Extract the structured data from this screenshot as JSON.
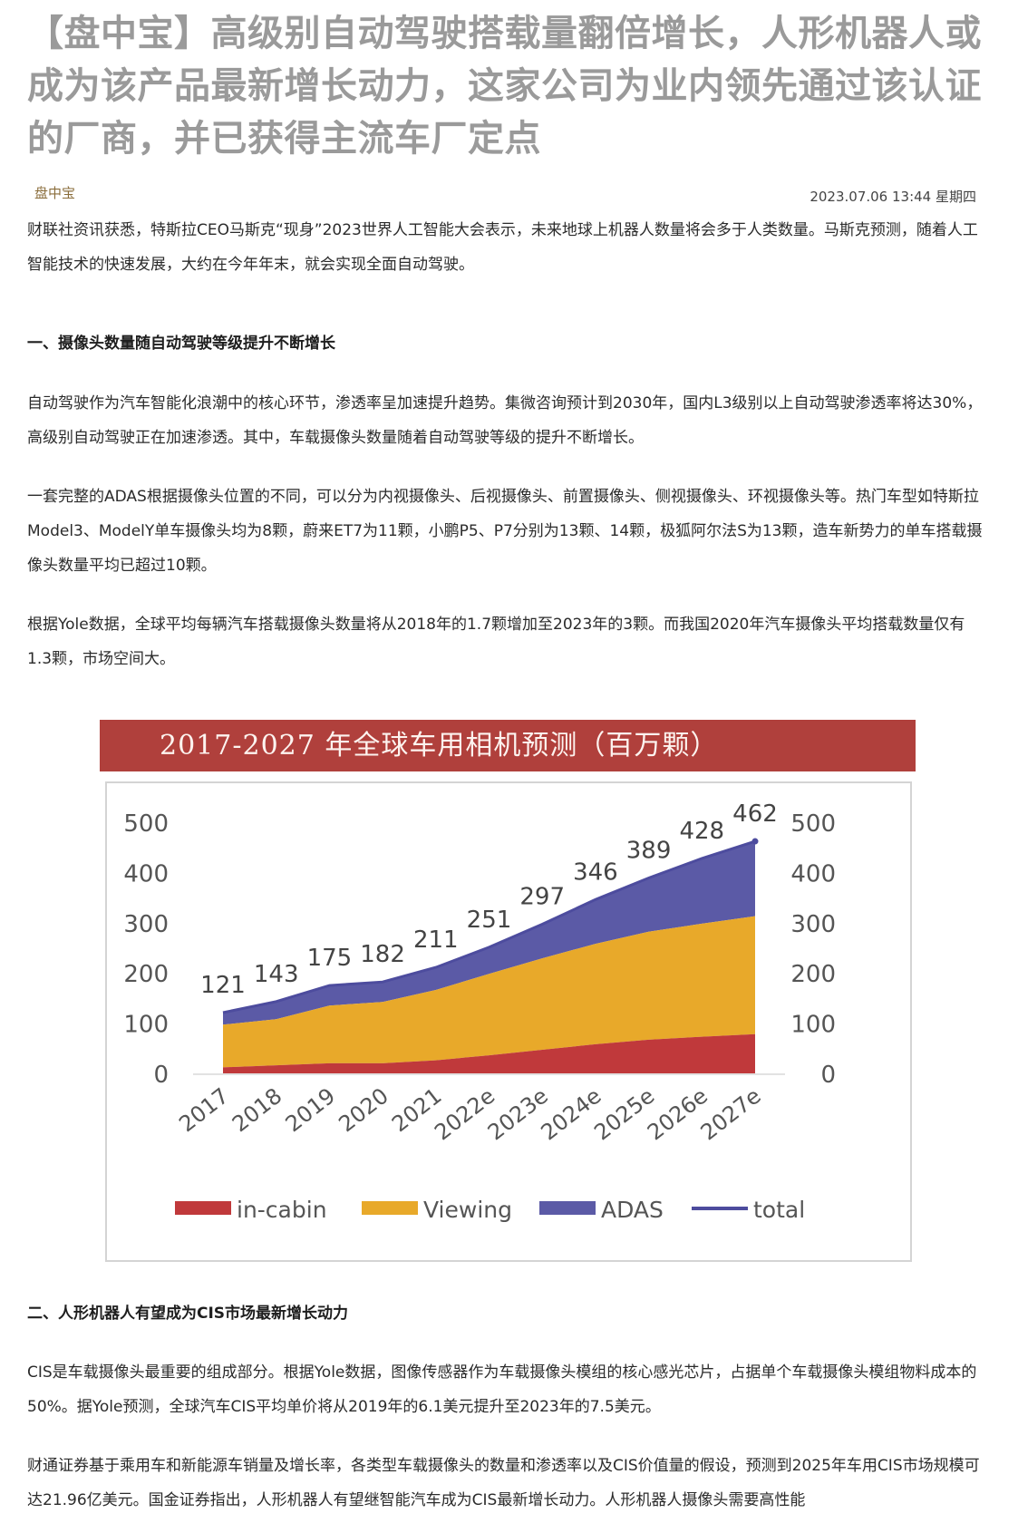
{
  "article": {
    "title": "【盘中宝】高级别自动驾驶搭载量翻倍增长，人形机器人或成为该产品最新增长动力，这家公司为业内领先通过该认证的厂商，并已获得主流车厂定点",
    "author": "盘中宝",
    "date": "2023.07.06 13:44 星期四",
    "intro": "财联社资讯获悉，特斯拉CEO马斯克“现身”2023世界人工智能大会表示，未来地球上机器人数量将会多于人类数量。马斯克预测，随着人工智能技术的快速发展，大约在今年年末，就会实现全面自动驾驶。",
    "section1_heading": "一、摄像头数量随自动驾驶等级提升不断增长",
    "section1_p1": "自动驾驶作为汽车智能化浪潮中的核心环节，渗透率呈加速提升趋势。集微咨询预计到2030年，国内L3级别以上自动驾驶渗透率将达30%，高级别自动驾驶正在加速渗透。其中，车载摄像头数量随着自动驾驶等级的提升不断增长。",
    "section1_p2": "一套完整的ADAS根据摄像头位置的不同，可以分为内视摄像头、后视摄像头、前置摄像头、侧视摄像头、环视摄像头等。热门车型如特斯拉Model3、ModelY单车摄像头均为8颗，蔚来ET7为11颗，小鹏P5、P7分别为13颗、14颗，极狐阿尔法S为13颗，造车新势力的单车搭载摄像头数量平均已超过10颗。",
    "section1_p3": "根据Yole数据，全球平均每辆汽车搭载摄像头数量将从2018年的1.7颗增加至2023年的3颗。而我国2020年汽车摄像头平均搭载数量仅有1.3颗，市场空间大。",
    "section2_heading": "二、人形机器人有望成为CIS市场最新增长动力",
    "section2_p1": "CIS是车载摄像头最重要的组成部分。根据Yole数据，图像传感器作为车载摄像头模组的核心感光芯片，占据单个车载摄像头模组物料成本的50%。据Yole预测，全球汽车CIS平均单价将从2019年的6.1美元提升至2023年的7.5美元。",
    "section2_p2": "财通证券基于乘用车和新能源车销量及增长率，各类型车载摄像头的数量和渗透率以及CIS价值量的假设，预测到2025年车用CIS市场规模可达21.96亿美元。国金证券指出，人形机器人有望继智能汽车成为CIS最新增长动力。人形机器人摄像头需要高性能"
  },
  "chart_data": {
    "type": "area",
    "title": "2017-2027 年全球车用相机预测（百万颗）",
    "categories": [
      "2017",
      "2018",
      "2019",
      "2020",
      "2021",
      "2022e",
      "2023e",
      "2024e",
      "2025e",
      "2026e",
      "2027e"
    ],
    "series": [
      {
        "name": "in-cabin",
        "values": [
          12,
          16,
          20,
          20,
          26,
          36,
          47,
          58,
          67,
          73,
          78
        ]
      },
      {
        "name": "Viewing",
        "values": [
          85,
          92,
          115,
          122,
          140,
          162,
          182,
          200,
          215,
          225,
          235
        ]
      },
      {
        "name": "ADAS",
        "values": [
          24,
          35,
          40,
          40,
          45,
          53,
          68,
          88,
          107,
          130,
          149
        ]
      },
      {
        "name": "total",
        "values": [
          121,
          143,
          175,
          182,
          211,
          251,
          297,
          346,
          389,
          428,
          462
        ]
      }
    ],
    "yticks": [
      0,
      100,
      200,
      300,
      400,
      500
    ],
    "ylim": [
      0,
      500
    ],
    "legend_position": "bottom",
    "colors": {
      "in-cabin": "#c0393b",
      "Viewing": "#e8a92a",
      "ADAS": "#5b5aa6",
      "total": "#4d4c9e"
    }
  }
}
